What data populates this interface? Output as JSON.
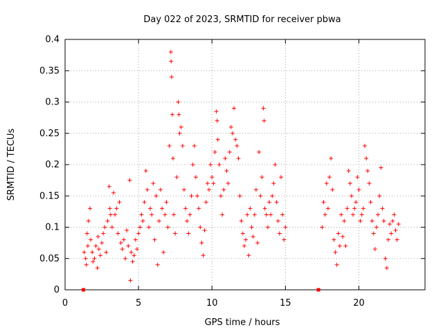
{
  "chart_data": {
    "type": "scatter",
    "title": "Day 022 of 2023, SRMTID for receiver pbwa",
    "xlabel": "GPS time / hours",
    "ylabel": "SRMTID / TECUs",
    "xlim": [
      0,
      24.5
    ],
    "ylim": [
      0,
      0.4
    ],
    "x_ticks": [
      0,
      5,
      10,
      15,
      20
    ],
    "y_ticks": [
      0,
      0.05,
      0.1,
      0.15,
      0.2,
      0.25,
      0.3,
      0.35,
      0.4
    ],
    "x_tick_labels": [
      "0",
      "5",
      "10",
      "15",
      "20"
    ],
    "y_tick_labels": [
      "0",
      "0.05",
      "0.1",
      "0.15",
      "0.2",
      "0.25",
      "0.3",
      "0.35",
      "0.4"
    ],
    "grid": true,
    "marker": "plus",
    "color": "#ff0000",
    "zero_markers": [
      {
        "x": 1.25,
        "y": 0
      },
      {
        "x": 17.25,
        "y": 0
      }
    ],
    "series": [
      {
        "name": "SRMTID",
        "points": [
          [
            1.3,
            0.06
          ],
          [
            1.4,
            0.05
          ],
          [
            1.45,
            0.04
          ],
          [
            1.5,
            0.09
          ],
          [
            1.55,
            0.07
          ],
          [
            1.6,
            0.11
          ],
          [
            1.7,
            0.13
          ],
          [
            1.75,
            0.08
          ],
          [
            1.85,
            0.06
          ],
          [
            1.9,
            0.045
          ],
          [
            2.0,
            0.05
          ],
          [
            2.1,
            0.07
          ],
          [
            2.2,
            0.035
          ],
          [
            2.25,
            0.085
          ],
          [
            2.3,
            0.065
          ],
          [
            2.4,
            0.055
          ],
          [
            2.5,
            0.075
          ],
          [
            2.6,
            0.09
          ],
          [
            2.7,
            0.1
          ],
          [
            2.8,
            0.06
          ],
          [
            2.9,
            0.11
          ],
          [
            3.0,
            0.165
          ],
          [
            3.05,
            0.13
          ],
          [
            3.1,
            0.12
          ],
          [
            3.2,
            0.1
          ],
          [
            3.3,
            0.155
          ],
          [
            3.4,
            0.12
          ],
          [
            3.5,
            0.13
          ],
          [
            3.6,
            0.09
          ],
          [
            3.7,
            0.14
          ],
          [
            3.8,
            0.075
          ],
          [
            3.9,
            0.065
          ],
          [
            4.0,
            0.08
          ],
          [
            4.1,
            0.05
          ],
          [
            4.2,
            0.095
          ],
          [
            4.3,
            0.07
          ],
          [
            4.4,
            0.175
          ],
          [
            4.45,
            0.015
          ],
          [
            4.5,
            0.06
          ],
          [
            4.6,
            0.045
          ],
          [
            4.7,
            0.055
          ],
          [
            4.8,
            0.08
          ],
          [
            4.9,
            0.065
          ],
          [
            5.0,
            0.09
          ],
          [
            5.1,
            0.1
          ],
          [
            5.2,
            0.12
          ],
          [
            5.3,
            0.11
          ],
          [
            5.4,
            0.14
          ],
          [
            5.5,
            0.19
          ],
          [
            5.6,
            0.16
          ],
          [
            5.7,
            0.1
          ],
          [
            5.8,
            0.13
          ],
          [
            5.9,
            0.12
          ],
          [
            6.0,
            0.17
          ],
          [
            6.1,
            0.08
          ],
          [
            6.2,
            0.15
          ],
          [
            6.3,
            0.04
          ],
          [
            6.4,
            0.11
          ],
          [
            6.5,
            0.16
          ],
          [
            6.6,
            0.13
          ],
          [
            6.7,
            0.06
          ],
          [
            6.8,
            0.12
          ],
          [
            6.9,
            0.14
          ],
          [
            7.0,
            0.1
          ],
          [
            7.1,
            0.23
          ],
          [
            7.2,
            0.38
          ],
          [
            7.22,
            0.365
          ],
          [
            7.25,
            0.34
          ],
          [
            7.3,
            0.28
          ],
          [
            7.35,
            0.21
          ],
          [
            7.4,
            0.12
          ],
          [
            7.5,
            0.09
          ],
          [
            7.6,
            0.18
          ],
          [
            7.7,
            0.3
          ],
          [
            7.75,
            0.28
          ],
          [
            7.8,
            0.25
          ],
          [
            7.9,
            0.26
          ],
          [
            8.0,
            0.23
          ],
          [
            8.1,
            0.16
          ],
          [
            8.2,
            0.13
          ],
          [
            8.3,
            0.11
          ],
          [
            8.4,
            0.09
          ],
          [
            8.5,
            0.12
          ],
          [
            8.6,
            0.15
          ],
          [
            8.7,
            0.2
          ],
          [
            8.8,
            0.23
          ],
          [
            8.9,
            0.18
          ],
          [
            9.0,
            0.15
          ],
          [
            9.1,
            0.13
          ],
          [
            9.2,
            0.1
          ],
          [
            9.3,
            0.075
          ],
          [
            9.4,
            0.055
          ],
          [
            9.5,
            0.095
          ],
          [
            9.6,
            0.14
          ],
          [
            9.7,
            0.17
          ],
          [
            9.8,
            0.16
          ],
          [
            9.9,
            0.2
          ],
          [
            10.0,
            0.18
          ],
          [
            10.1,
            0.17
          ],
          [
            10.2,
            0.22
          ],
          [
            10.3,
            0.285
          ],
          [
            10.35,
            0.27
          ],
          [
            10.4,
            0.24
          ],
          [
            10.5,
            0.2
          ],
          [
            10.6,
            0.15
          ],
          [
            10.7,
            0.12
          ],
          [
            10.8,
            0.16
          ],
          [
            10.9,
            0.21
          ],
          [
            11.0,
            0.19
          ],
          [
            11.1,
            0.17
          ],
          [
            11.2,
            0.22
          ],
          [
            11.3,
            0.26
          ],
          [
            11.4,
            0.25
          ],
          [
            11.5,
            0.29
          ],
          [
            11.6,
            0.24
          ],
          [
            11.7,
            0.23
          ],
          [
            11.8,
            0.21
          ],
          [
            11.9,
            0.15
          ],
          [
            12.0,
            0.11
          ],
          [
            12.1,
            0.09
          ],
          [
            12.2,
            0.07
          ],
          [
            12.3,
            0.08
          ],
          [
            12.4,
            0.12
          ],
          [
            12.5,
            0.055
          ],
          [
            12.6,
            0.13
          ],
          [
            12.7,
            0.1
          ],
          [
            12.8,
            0.085
          ],
          [
            12.9,
            0.12
          ],
          [
            13.0,
            0.16
          ],
          [
            13.1,
            0.075
          ],
          [
            13.2,
            0.22
          ],
          [
            13.3,
            0.15
          ],
          [
            13.4,
            0.18
          ],
          [
            13.5,
            0.29
          ],
          [
            13.55,
            0.27
          ],
          [
            13.6,
            0.13
          ],
          [
            13.7,
            0.12
          ],
          [
            13.8,
            0.1
          ],
          [
            13.9,
            0.14
          ],
          [
            14.0,
            0.12
          ],
          [
            14.1,
            0.15
          ],
          [
            14.2,
            0.17
          ],
          [
            14.3,
            0.2
          ],
          [
            14.4,
            0.14
          ],
          [
            14.5,
            0.11
          ],
          [
            14.6,
            0.09
          ],
          [
            14.7,
            0.18
          ],
          [
            14.8,
            0.12
          ],
          [
            14.9,
            0.08
          ],
          [
            15.0,
            0.1
          ],
          [
            17.5,
            0.1
          ],
          [
            17.6,
            0.14
          ],
          [
            17.7,
            0.12
          ],
          [
            17.8,
            0.17
          ],
          [
            17.9,
            0.13
          ],
          [
            18.0,
            0.18
          ],
          [
            18.1,
            0.21
          ],
          [
            18.2,
            0.16
          ],
          [
            18.3,
            0.08
          ],
          [
            18.4,
            0.06
          ],
          [
            18.5,
            0.04
          ],
          [
            18.6,
            0.09
          ],
          [
            18.7,
            0.07
          ],
          [
            18.8,
            0.12
          ],
          [
            18.9,
            0.085
          ],
          [
            19.0,
            0.11
          ],
          [
            19.1,
            0.07
          ],
          [
            19.2,
            0.13
          ],
          [
            19.3,
            0.19
          ],
          [
            19.4,
            0.17
          ],
          [
            19.5,
            0.15
          ],
          [
            19.6,
            0.12
          ],
          [
            19.7,
            0.13
          ],
          [
            19.8,
            0.14
          ],
          [
            19.9,
            0.18
          ],
          [
            20.0,
            0.16
          ],
          [
            20.1,
            0.11
          ],
          [
            20.2,
            0.12
          ],
          [
            20.3,
            0.13
          ],
          [
            20.4,
            0.23
          ],
          [
            20.5,
            0.21
          ],
          [
            20.6,
            0.19
          ],
          [
            20.7,
            0.17
          ],
          [
            20.8,
            0.14
          ],
          [
            20.9,
            0.11
          ],
          [
            21.0,
            0.09
          ],
          [
            21.1,
            0.065
          ],
          [
            21.2,
            0.1
          ],
          [
            21.3,
            0.12
          ],
          [
            21.4,
            0.15
          ],
          [
            21.5,
            0.195
          ],
          [
            21.6,
            0.13
          ],
          [
            21.7,
            0.11
          ],
          [
            21.8,
            0.05
          ],
          [
            21.9,
            0.035
          ],
          [
            22.0,
            0.08
          ],
          [
            22.1,
            0.105
          ],
          [
            22.2,
            0.09
          ],
          [
            22.3,
            0.11
          ],
          [
            22.4,
            0.12
          ],
          [
            22.5,
            0.095
          ],
          [
            22.6,
            0.08
          ],
          [
            22.7,
            0.105
          ]
        ]
      }
    ]
  }
}
